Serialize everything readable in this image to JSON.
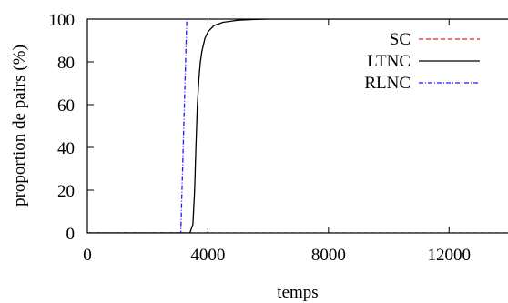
{
  "chart_data": {
    "type": "line",
    "xlabel": "temps",
    "ylabel": "proportion de pairs (%)",
    "xlim": [
      0,
      14500
    ],
    "ylim": [
      0,
      100
    ],
    "xticks": [
      0,
      4000,
      8000,
      12000
    ],
    "yticks": [
      0,
      20,
      40,
      60,
      80,
      100
    ],
    "xtick_labels": [
      "0",
      "4000",
      "8000",
      "12000"
    ],
    "ytick_labels": [
      "0",
      "20",
      "40",
      "60",
      "80",
      "100"
    ],
    "legend_position": "top-right",
    "grid": false,
    "series": [
      {
        "name": "SC",
        "color": "#e0201b",
        "style": "dashed",
        "x": [
          0,
          14000,
          14550
        ],
        "y": [
          0,
          0,
          100
        ]
      },
      {
        "name": "LTNC",
        "color": "#000000",
        "style": "solid",
        "x": [
          0,
          3400,
          3500,
          3560,
          3600,
          3650,
          3700,
          3750,
          3800,
          3900,
          4000,
          4200,
          4500,
          5000,
          5500,
          6000,
          14500
        ],
        "y": [
          0,
          0,
          4,
          20,
          40,
          60,
          72,
          80,
          85,
          91,
          94,
          97,
          98.5,
          99.5,
          99.8,
          100,
          100
        ]
      },
      {
        "name": "RLNC",
        "color": "#1a1aff",
        "style": "dashdot",
        "x": [
          0,
          3100,
          3300
        ],
        "y": [
          0,
          0,
          100
        ]
      }
    ]
  }
}
